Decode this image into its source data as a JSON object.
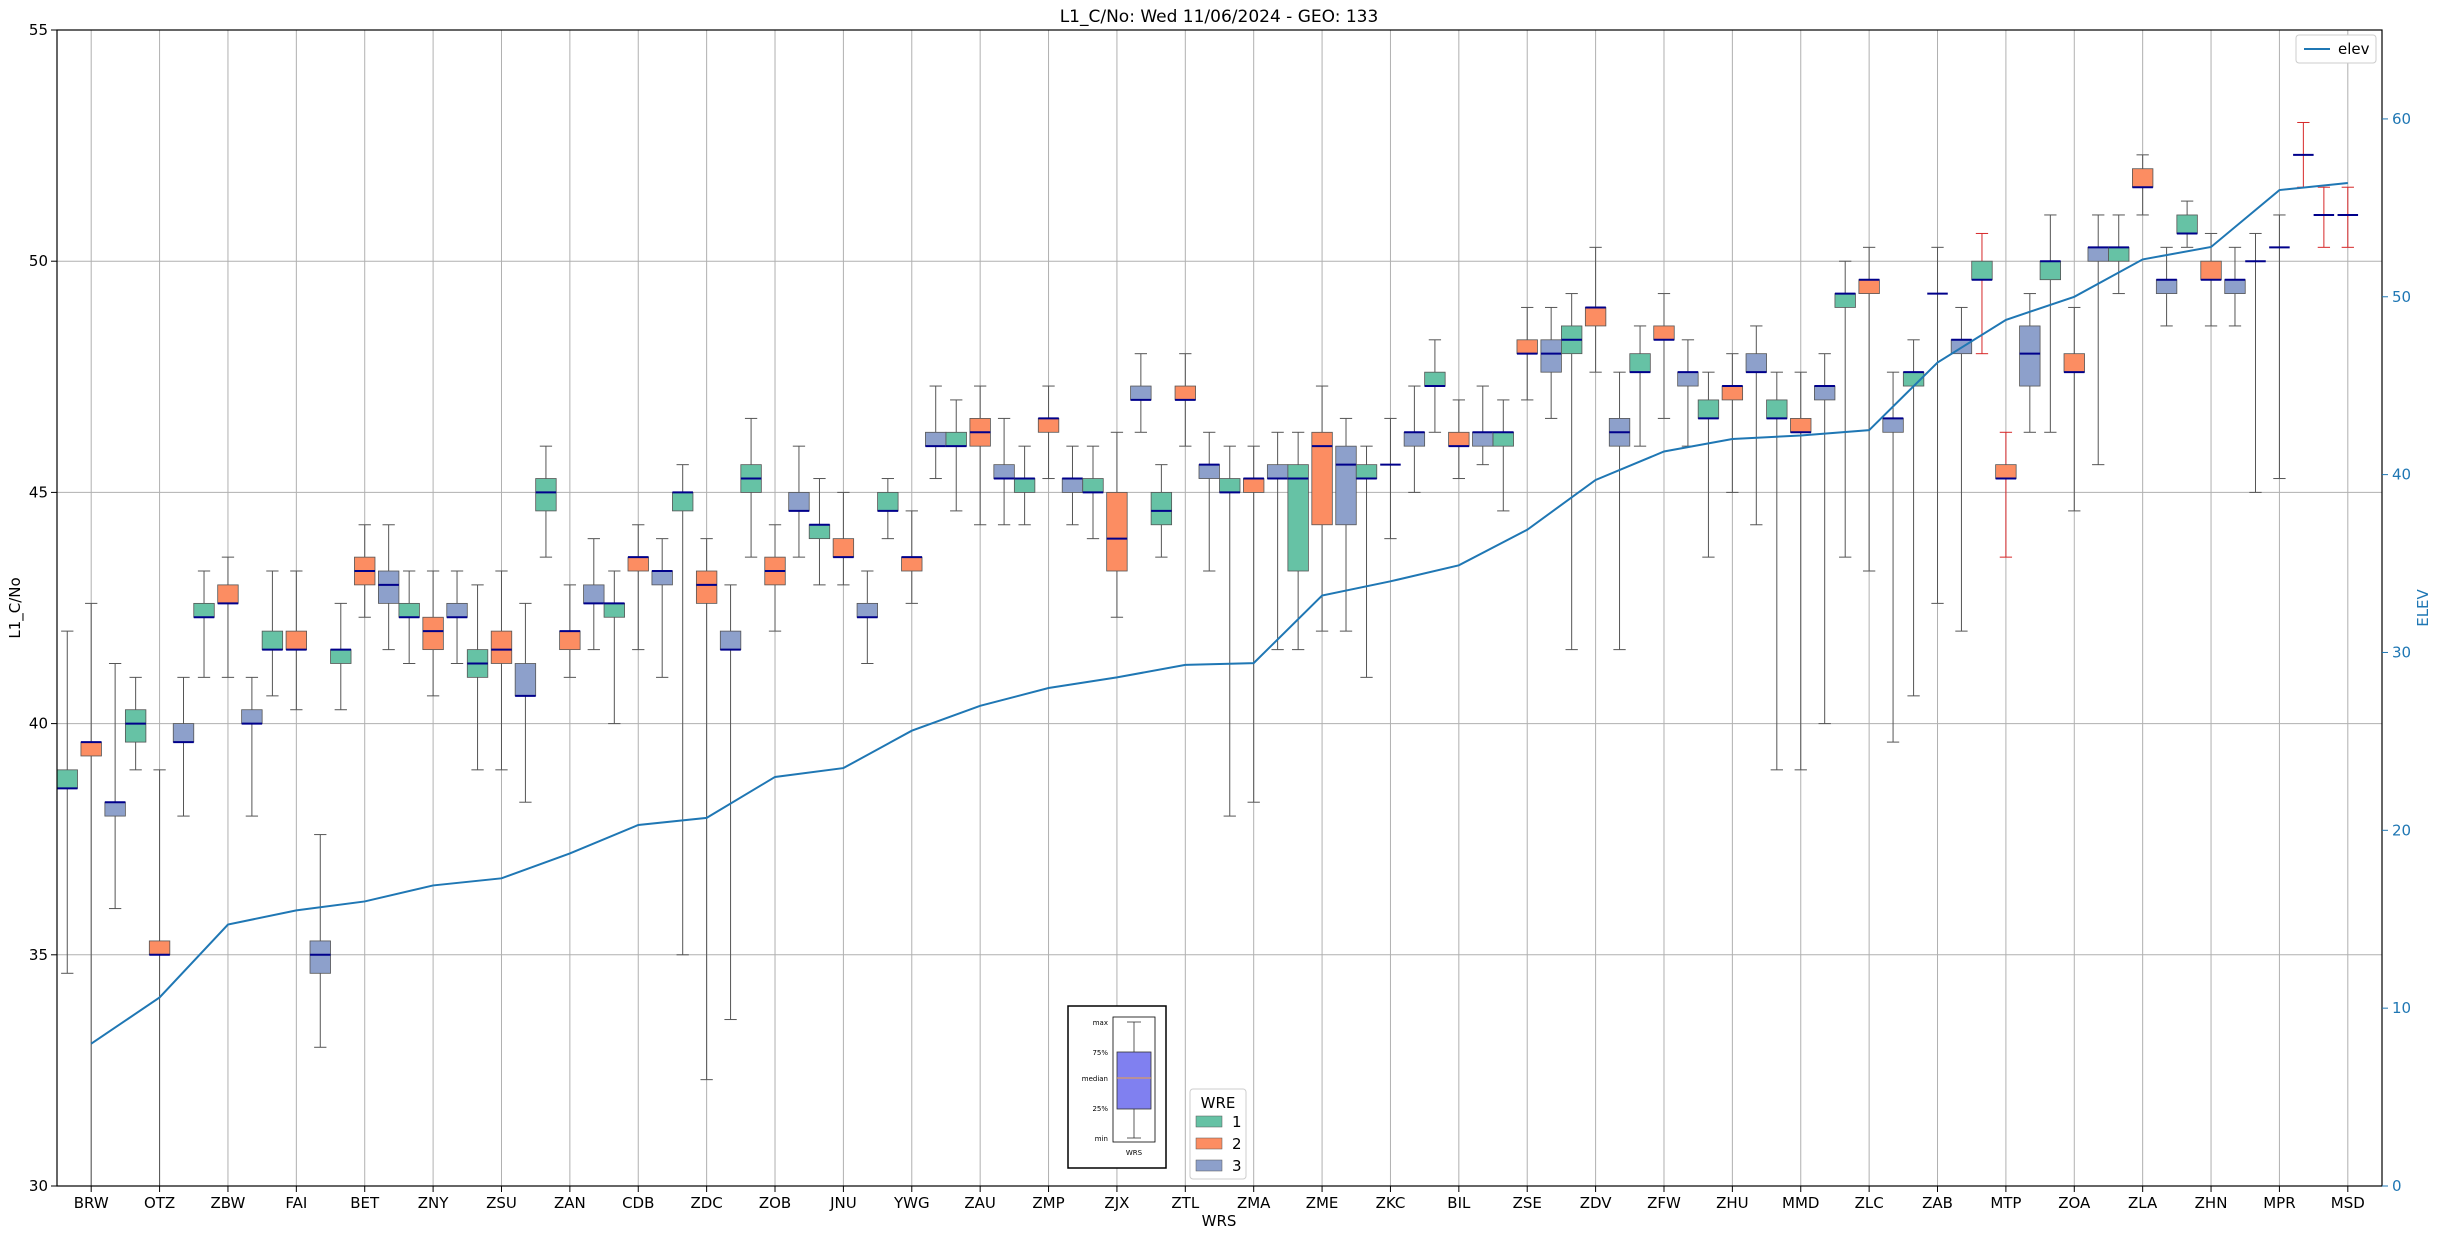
{
  "chart_data": {
    "type": "box",
    "title": "L1_C/No: Wed 11/06/2024 - GEO: 133",
    "xlabel": "WRS",
    "ylabel": "L1_C/No",
    "y2label": "ELEV",
    "ylim": [
      30,
      55
    ],
    "y2lim": [
      0,
      65
    ],
    "yticks": [
      30,
      35,
      40,
      45,
      50,
      55
    ],
    "y2ticks": [
      0,
      10,
      20,
      30,
      40,
      50,
      60
    ],
    "grid": true,
    "categories": [
      "BRW",
      "OTZ",
      "ZBW",
      "FAI",
      "BET",
      "ZNY",
      "ZSU",
      "ZAN",
      "CDB",
      "ZDC",
      "ZOB",
      "JNU",
      "YWG",
      "ZAU",
      "ZMP",
      "ZJX",
      "ZTL",
      "ZMA",
      "ZME",
      "ZKC",
      "BIL",
      "ZSE",
      "ZDV",
      "ZFW",
      "ZHU",
      "MMD",
      "ZLC",
      "ZAB",
      "MTP",
      "ZOA",
      "ZLA",
      "ZHN",
      "MPR",
      "MSD"
    ],
    "wre_colors": {
      "1": "#66c2a5",
      "2": "#fc8d62",
      "3": "#8da0cb"
    },
    "median_color": "#00008b",
    "legend": {
      "title": "WRE",
      "entries": [
        "1",
        "2",
        "3"
      ],
      "placement": "lower center"
    },
    "line_legend": {
      "label": "elev",
      "color": "#1f77b4",
      "placement": "upper right"
    },
    "key_box": {
      "labels": [
        "max",
        "75%",
        "median",
        "25%",
        "min"
      ],
      "xlabel": "WRS"
    },
    "boxes": [
      {
        "x": "BRW",
        "wre": "1",
        "min": 34.6,
        "q1": 38.6,
        "med": 38.6,
        "q3": 39.0,
        "max": 42.0
      },
      {
        "x": "BRW",
        "wre": "2",
        "min": 30.0,
        "q1": 39.3,
        "med": 39.6,
        "q3": 39.6,
        "max": 42.6
      },
      {
        "x": "BRW",
        "wre": "3",
        "min": 36.0,
        "q1": 38.0,
        "med": 38.3,
        "q3": 38.3,
        "max": 41.3
      },
      {
        "x": "OTZ",
        "wre": "1",
        "min": 39.0,
        "q1": 39.6,
        "med": 40.0,
        "q3": 40.3,
        "max": 41.0
      },
      {
        "x": "OTZ",
        "wre": "2",
        "min": 30.0,
        "q1": 35.0,
        "med": 35.0,
        "q3": 35.3,
        "max": 39.0
      },
      {
        "x": "OTZ",
        "wre": "3",
        "min": 38.0,
        "q1": 39.6,
        "med": 39.6,
        "q3": 40.0,
        "max": 41.0
      },
      {
        "x": "ZBW",
        "wre": "1",
        "min": 41.0,
        "q1": 42.3,
        "med": 42.3,
        "q3": 42.6,
        "max": 43.3
      },
      {
        "x": "ZBW",
        "wre": "2",
        "min": 41.0,
        "q1": 42.6,
        "med": 42.6,
        "q3": 43.0,
        "max": 43.6
      },
      {
        "x": "ZBW",
        "wre": "3",
        "min": 38.0,
        "q1": 40.0,
        "med": 40.0,
        "q3": 40.3,
        "max": 41.0
      },
      {
        "x": "FAI",
        "wre": "1",
        "min": 40.6,
        "q1": 41.6,
        "med": 41.6,
        "q3": 42.0,
        "max": 43.3
      },
      {
        "x": "FAI",
        "wre": "2",
        "min": 40.3,
        "q1": 41.6,
        "med": 41.6,
        "q3": 42.0,
        "max": 43.3
      },
      {
        "x": "FAI",
        "wre": "3",
        "min": 33.0,
        "q1": 34.6,
        "med": 35.0,
        "q3": 35.3,
        "max": 37.6
      },
      {
        "x": "BET",
        "wre": "1",
        "min": 40.3,
        "q1": 41.3,
        "med": 41.6,
        "q3": 41.6,
        "max": 42.6
      },
      {
        "x": "BET",
        "wre": "2",
        "min": 42.3,
        "q1": 43.0,
        "med": 43.3,
        "q3": 43.6,
        "max": 44.3
      },
      {
        "x": "BET",
        "wre": "3",
        "min": 41.6,
        "q1": 42.6,
        "med": 43.0,
        "q3": 43.3,
        "max": 44.3
      },
      {
        "x": "ZNY",
        "wre": "1",
        "min": 41.3,
        "q1": 42.3,
        "med": 42.3,
        "q3": 42.6,
        "max": 43.3
      },
      {
        "x": "ZNY",
        "wre": "2",
        "min": 40.6,
        "q1": 41.6,
        "med": 42.0,
        "q3": 42.3,
        "max": 43.3
      },
      {
        "x": "ZNY",
        "wre": "3",
        "min": 41.3,
        "q1": 42.3,
        "med": 42.3,
        "q3": 42.6,
        "max": 43.3
      },
      {
        "x": "ZSU",
        "wre": "1",
        "min": 39.0,
        "q1": 41.0,
        "med": 41.3,
        "q3": 41.6,
        "max": 43.0
      },
      {
        "x": "ZSU",
        "wre": "2",
        "min": 39.0,
        "q1": 41.3,
        "med": 41.6,
        "q3": 42.0,
        "max": 43.3
      },
      {
        "x": "ZSU",
        "wre": "3",
        "min": 38.3,
        "q1": 40.6,
        "med": 40.6,
        "q3": 41.3,
        "max": 42.6
      },
      {
        "x": "ZAN",
        "wre": "1",
        "min": 43.6,
        "q1": 44.6,
        "med": 45.0,
        "q3": 45.3,
        "max": 46.0
      },
      {
        "x": "ZAN",
        "wre": "2",
        "min": 41.0,
        "q1": 41.6,
        "med": 42.0,
        "q3": 42.0,
        "max": 43.0
      },
      {
        "x": "ZAN",
        "wre": "3",
        "min": 41.6,
        "q1": 42.6,
        "med": 42.6,
        "q3": 43.0,
        "max": 44.0
      },
      {
        "x": "CDB",
        "wre": "1",
        "min": 40.0,
        "q1": 42.3,
        "med": 42.6,
        "q3": 42.6,
        "max": 43.3
      },
      {
        "x": "CDB",
        "wre": "2",
        "min": 41.6,
        "q1": 43.3,
        "med": 43.6,
        "q3": 43.6,
        "max": 44.3
      },
      {
        "x": "CDB",
        "wre": "3",
        "min": 41.0,
        "q1": 43.0,
        "med": 43.3,
        "q3": 43.3,
        "max": 44.0
      },
      {
        "x": "ZDC",
        "wre": "1",
        "min": 35.0,
        "q1": 44.6,
        "med": 45.0,
        "q3": 45.0,
        "max": 45.6
      },
      {
        "x": "ZDC",
        "wre": "2",
        "min": 32.3,
        "q1": 42.6,
        "med": 43.0,
        "q3": 43.3,
        "max": 44.0
      },
      {
        "x": "ZDC",
        "wre": "3",
        "min": 33.6,
        "q1": 41.6,
        "med": 41.6,
        "q3": 42.0,
        "max": 43.0
      },
      {
        "x": "ZOB",
        "wre": "1",
        "min": 43.6,
        "q1": 45.0,
        "med": 45.3,
        "q3": 45.6,
        "max": 46.6
      },
      {
        "x": "ZOB",
        "wre": "2",
        "min": 42.0,
        "q1": 43.0,
        "med": 43.3,
        "q3": 43.6,
        "max": 44.3
      },
      {
        "x": "ZOB",
        "wre": "3",
        "min": 43.6,
        "q1": 44.6,
        "med": 44.6,
        "q3": 45.0,
        "max": 46.0
      },
      {
        "x": "JNU",
        "wre": "1",
        "min": 43.0,
        "q1": 44.0,
        "med": 44.3,
        "q3": 44.3,
        "max": 45.3
      },
      {
        "x": "JNU",
        "wre": "2",
        "min": 43.0,
        "q1": 43.6,
        "med": 43.6,
        "q3": 44.0,
        "max": 45.0
      },
      {
        "x": "JNU",
        "wre": "3",
        "min": 41.3,
        "q1": 42.3,
        "med": 42.3,
        "q3": 42.6,
        "max": 43.3
      },
      {
        "x": "YWG",
        "wre": "1",
        "min": 44.0,
        "q1": 44.6,
        "med": 44.6,
        "q3": 45.0,
        "max": 45.3
      },
      {
        "x": "YWG",
        "wre": "2",
        "min": 42.6,
        "q1": 43.3,
        "med": 43.6,
        "q3": 43.6,
        "max": 44.6
      },
      {
        "x": "YWG",
        "wre": "3",
        "min": 45.3,
        "q1": 46.0,
        "med": 46.0,
        "q3": 46.3,
        "max": 47.3
      },
      {
        "x": "ZAU",
        "wre": "1",
        "min": 44.6,
        "q1": 46.0,
        "med": 46.0,
        "q3": 46.3,
        "max": 47.0
      },
      {
        "x": "ZAU",
        "wre": "2",
        "min": 44.3,
        "q1": 46.0,
        "med": 46.3,
        "q3": 46.6,
        "max": 47.3
      },
      {
        "x": "ZAU",
        "wre": "3",
        "min": 44.3,
        "q1": 45.3,
        "med": 45.3,
        "q3": 45.6,
        "max": 46.6
      },
      {
        "x": "ZMP",
        "wre": "1",
        "min": 44.3,
        "q1": 45.0,
        "med": 45.3,
        "q3": 45.3,
        "max": 46.0
      },
      {
        "x": "ZMP",
        "wre": "2",
        "min": 45.3,
        "q1": 46.3,
        "med": 46.6,
        "q3": 46.6,
        "max": 47.3
      },
      {
        "x": "ZMP",
        "wre": "3",
        "min": 44.3,
        "q1": 45.0,
        "med": 45.3,
        "q3": 45.3,
        "max": 46.0
      },
      {
        "x": "ZJX",
        "wre": "1",
        "min": 44.0,
        "q1": 45.0,
        "med": 45.0,
        "q3": 45.3,
        "max": 46.0
      },
      {
        "x": "ZJX",
        "wre": "2",
        "min": 42.3,
        "q1": 43.3,
        "med": 44.0,
        "q3": 45.0,
        "max": 46.3
      },
      {
        "x": "ZJX",
        "wre": "3",
        "min": 46.3,
        "q1": 47.0,
        "med": 47.0,
        "q3": 47.3,
        "max": 48.0
      },
      {
        "x": "ZTL",
        "wre": "1",
        "min": 43.6,
        "q1": 44.3,
        "med": 44.6,
        "q3": 45.0,
        "max": 45.6
      },
      {
        "x": "ZTL",
        "wre": "2",
        "min": 46.0,
        "q1": 47.0,
        "med": 47.0,
        "q3": 47.3,
        "max": 48.0
      },
      {
        "x": "ZTL",
        "wre": "3",
        "min": 43.3,
        "q1": 45.3,
        "med": 45.6,
        "q3": 45.6,
        "max": 46.3
      },
      {
        "x": "ZMA",
        "wre": "1",
        "min": 38.0,
        "q1": 45.0,
        "med": 45.0,
        "q3": 45.3,
        "max": 46.0
      },
      {
        "x": "ZMA",
        "wre": "2",
        "min": 38.3,
        "q1": 45.0,
        "med": 45.3,
        "q3": 45.3,
        "max": 46.0
      },
      {
        "x": "ZMA",
        "wre": "3",
        "min": 41.6,
        "q1": 45.3,
        "med": 45.3,
        "q3": 45.6,
        "max": 46.3
      },
      {
        "x": "ZME",
        "wre": "1",
        "min": 41.6,
        "q1": 43.3,
        "med": 45.3,
        "q3": 45.6,
        "max": 46.3
      },
      {
        "x": "ZME",
        "wre": "2",
        "min": 42.0,
        "q1": 44.3,
        "med": 46.0,
        "q3": 46.3,
        "max": 47.3
      },
      {
        "x": "ZME",
        "wre": "3",
        "min": 42.0,
        "q1": 44.3,
        "med": 45.6,
        "q3": 46.0,
        "max": 46.6
      },
      {
        "x": "ZKC",
        "wre": "1",
        "min": 41.0,
        "q1": 45.3,
        "med": 45.3,
        "q3": 45.6,
        "max": 46.0
      },
      {
        "x": "ZKC",
        "wre": "2",
        "min": 44.0,
        "q1": 45.6,
        "med": 45.6,
        "q3": 45.6,
        "max": 46.6
      },
      {
        "x": "ZKC",
        "wre": "3",
        "min": 45.0,
        "q1": 46.0,
        "med": 46.3,
        "q3": 46.3,
        "max": 47.3
      },
      {
        "x": "BIL",
        "wre": "1",
        "min": 46.3,
        "q1": 47.3,
        "med": 47.3,
        "q3": 47.6,
        "max": 48.3
      },
      {
        "x": "BIL",
        "wre": "2",
        "min": 45.3,
        "q1": 46.0,
        "med": 46.0,
        "q3": 46.3,
        "max": 47.0
      },
      {
        "x": "BIL",
        "wre": "3",
        "min": 45.6,
        "q1": 46.0,
        "med": 46.3,
        "q3": 46.3,
        "max": 47.3
      },
      {
        "x": "ZSE",
        "wre": "1",
        "min": 44.6,
        "q1": 46.0,
        "med": 46.3,
        "q3": 46.3,
        "max": 47.0
      },
      {
        "x": "ZSE",
        "wre": "2",
        "min": 47.0,
        "q1": 48.0,
        "med": 48.0,
        "q3": 48.3,
        "max": 49.0
      },
      {
        "x": "ZSE",
        "wre": "3",
        "min": 46.6,
        "q1": 47.6,
        "med": 48.0,
        "q3": 48.3,
        "max": 49.0
      },
      {
        "x": "ZDV",
        "wre": "1",
        "min": 41.6,
        "q1": 48.0,
        "med": 48.3,
        "q3": 48.6,
        "max": 49.3
      },
      {
        "x": "ZDV",
        "wre": "2",
        "min": 47.6,
        "q1": 48.6,
        "med": 49.0,
        "q3": 49.0,
        "max": 50.3
      },
      {
        "x": "ZDV",
        "wre": "3",
        "min": 41.6,
        "q1": 46.0,
        "med": 46.3,
        "q3": 46.6,
        "max": 47.6
      },
      {
        "x": "ZFW",
        "wre": "1",
        "min": 46.0,
        "q1": 47.6,
        "med": 47.6,
        "q3": 48.0,
        "max": 48.6
      },
      {
        "x": "ZFW",
        "wre": "2",
        "min": 46.6,
        "q1": 48.3,
        "med": 48.3,
        "q3": 48.6,
        "max": 49.3
      },
      {
        "x": "ZFW",
        "wre": "3",
        "min": 46.0,
        "q1": 47.3,
        "med": 47.6,
        "q3": 47.6,
        "max": 48.3
      },
      {
        "x": "ZHU",
        "wre": "1",
        "min": 43.6,
        "q1": 46.6,
        "med": 46.6,
        "q3": 47.0,
        "max": 47.6
      },
      {
        "x": "ZHU",
        "wre": "2",
        "min": 45.0,
        "q1": 47.0,
        "med": 47.3,
        "q3": 47.3,
        "max": 48.0
      },
      {
        "x": "ZHU",
        "wre": "3",
        "min": 44.3,
        "q1": 47.6,
        "med": 47.6,
        "q3": 48.0,
        "max": 48.6
      },
      {
        "x": "MMD",
        "wre": "1",
        "min": 39.0,
        "q1": 46.6,
        "med": 46.6,
        "q3": 47.0,
        "max": 47.6
      },
      {
        "x": "MMD",
        "wre": "2",
        "min": 39.0,
        "q1": 46.3,
        "med": 46.3,
        "q3": 46.6,
        "max": 47.6
      },
      {
        "x": "MMD",
        "wre": "3",
        "min": 40.0,
        "q1": 47.0,
        "med": 47.3,
        "q3": 47.3,
        "max": 48.0
      },
      {
        "x": "ZLC",
        "wre": "1",
        "min": 43.6,
        "q1": 49.0,
        "med": 49.3,
        "q3": 49.3,
        "max": 50.0
      },
      {
        "x": "ZLC",
        "wre": "2",
        "min": 43.3,
        "q1": 49.3,
        "med": 49.6,
        "q3": 49.6,
        "max": 50.3
      },
      {
        "x": "ZLC",
        "wre": "3",
        "min": 39.6,
        "q1": 46.3,
        "med": 46.6,
        "q3": 46.6,
        "max": 47.6
      },
      {
        "x": "ZAB",
        "wre": "1",
        "min": 40.6,
        "q1": 47.3,
        "med": 47.6,
        "q3": 47.6,
        "max": 48.3
      },
      {
        "x": "ZAB",
        "wre": "2",
        "min": 42.6,
        "q1": 49.3,
        "med": 49.3,
        "q3": 49.3,
        "max": 50.3
      },
      {
        "x": "ZAB",
        "wre": "3",
        "min": 42.0,
        "q1": 48.0,
        "med": 48.3,
        "q3": 48.3,
        "max": 49.0
      },
      {
        "x": "MTP",
        "wre": "1",
        "min": 48.0,
        "q1": 49.6,
        "med": 49.6,
        "q3": 50.0,
        "max": 50.6
      },
      {
        "x": "MTP",
        "wre": "2",
        "min": 43.6,
        "q1": 45.3,
        "med": 45.3,
        "q3": 45.6,
        "max": 46.3
      },
      {
        "x": "MTP",
        "wre": "3",
        "min": 46.3,
        "q1": 47.3,
        "med": 48.0,
        "q3": 48.6,
        "max": 49.3
      },
      {
        "x": "ZOA",
        "wre": "1",
        "min": 46.3,
        "q1": 49.6,
        "med": 50.0,
        "q3": 50.0,
        "max": 51.0
      },
      {
        "x": "ZOA",
        "wre": "2",
        "min": 44.6,
        "q1": 47.6,
        "med": 47.6,
        "q3": 48.0,
        "max": 49.0
      },
      {
        "x": "ZOA",
        "wre": "3",
        "min": 45.6,
        "q1": 50.0,
        "med": 50.3,
        "q3": 50.3,
        "max": 51.0
      },
      {
        "x": "ZLA",
        "wre": "1",
        "min": 49.3,
        "q1": 50.0,
        "med": 50.3,
        "q3": 50.3,
        "max": 51.0
      },
      {
        "x": "ZLA",
        "wre": "2",
        "min": 51.0,
        "q1": 51.6,
        "med": 51.6,
        "q3": 52.0,
        "max": 52.3
      },
      {
        "x": "ZLA",
        "wre": "3",
        "min": 48.6,
        "q1": 49.3,
        "med": 49.6,
        "q3": 49.6,
        "max": 50.3
      },
      {
        "x": "ZHN",
        "wre": "1",
        "min": 50.3,
        "q1": 50.6,
        "med": 50.6,
        "q3": 51.0,
        "max": 51.3
      },
      {
        "x": "ZHN",
        "wre": "2",
        "min": 48.6,
        "q1": 49.6,
        "med": 49.6,
        "q3": 50.0,
        "max": 50.6
      },
      {
        "x": "ZHN",
        "wre": "3",
        "min": 48.6,
        "q1": 49.3,
        "med": 49.6,
        "q3": 49.6,
        "max": 50.3
      },
      {
        "x": "MPR",
        "wre": "1",
        "min": 45.0,
        "q1": 50.0,
        "med": 50.0,
        "q3": 50.0,
        "max": 50.6
      },
      {
        "x": "MPR",
        "wre": "2",
        "min": 45.3,
        "q1": 50.3,
        "med": 50.3,
        "q3": 50.3,
        "max": 51.0
      },
      {
        "x": "MPR",
        "wre": "3",
        "min": 51.6,
        "q1": 52.3,
        "med": 52.3,
        "q3": 52.3,
        "max": 53.0
      },
      {
        "x": "MSD",
        "wre": "1",
        "min": 50.3,
        "q1": 51.0,
        "med": 51.0,
        "q3": 51.0,
        "max": 51.6
      },
      {
        "x": "MSD",
        "wre": "2",
        "min": 50.3,
        "q1": 51.0,
        "med": 51.0,
        "q3": 51.0,
        "max": 51.6
      },
      {
        "x": "MSD",
        "wre": "3",
        "min": null,
        "q1": null,
        "med": null,
        "q3": null,
        "max": null
      }
    ],
    "elev_series": {
      "name": "elev",
      "x": [
        "BRW",
        "OTZ",
        "ZBW",
        "FAI",
        "BET",
        "ZNY",
        "ZSU",
        "ZAN",
        "CDB",
        "ZDC",
        "ZOB",
        "JNU",
        "YWG",
        "ZAU",
        "ZMP",
        "ZJX",
        "ZTL",
        "ZMA",
        "ZME",
        "ZKC",
        "BIL",
        "ZSE",
        "ZDV",
        "ZFW",
        "ZHU",
        "MMD",
        "ZLC",
        "ZAB",
        "MTP",
        "ZOA",
        "ZLA",
        "ZHN",
        "MPR",
        "MSD"
      ],
      "y": [
        8.0,
        10.6,
        14.7,
        15.5,
        16.0,
        16.9,
        17.3,
        18.7,
        20.3,
        20.7,
        23.0,
        23.5,
        25.6,
        27.0,
        28.0,
        28.6,
        29.3,
        29.4,
        33.2,
        34.0,
        34.9,
        36.9,
        39.7,
        41.3,
        42.0,
        42.2,
        42.5,
        46.3,
        48.7,
        50.0,
        52.1,
        52.8,
        56.0,
        56.4
      ]
    },
    "red_whisker_boxes": [
      "MTP-2",
      "MTP-1",
      "MPR-3",
      "MSD-1",
      "MSD-2"
    ]
  }
}
